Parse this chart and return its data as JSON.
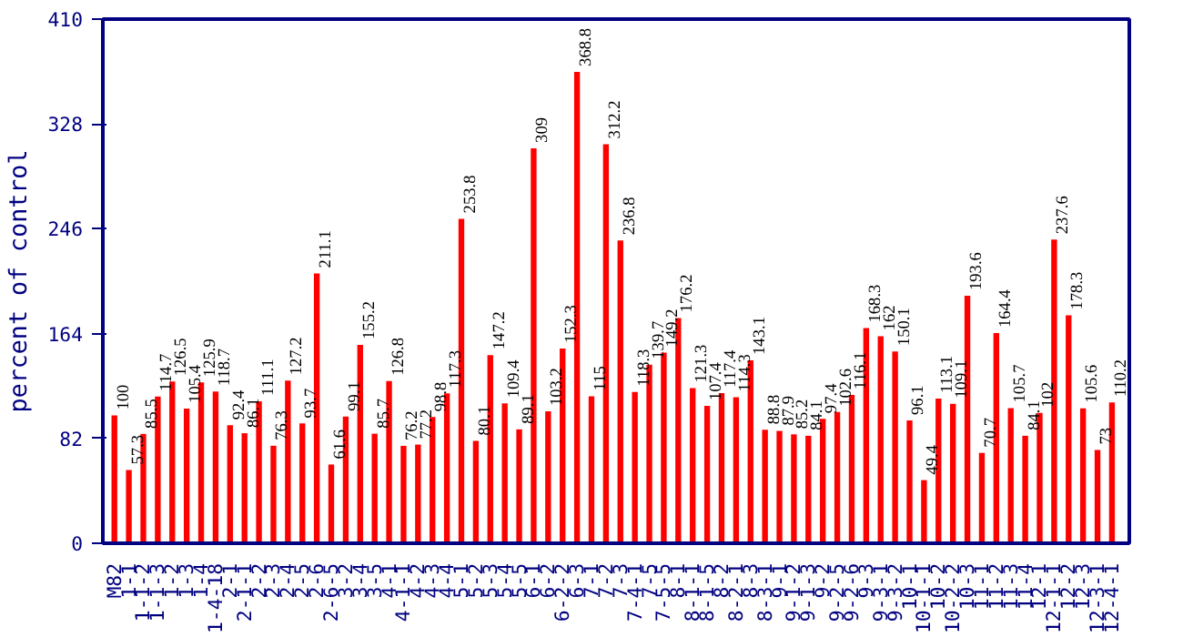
{
  "chart_data": {
    "type": "bar",
    "ylabel": "percent of control",
    "categories": [
      "M82",
      "1-1",
      "1-1-2",
      "1-1-3",
      "1-2",
      "1-3",
      "1-4",
      "1-4-18",
      "2-1",
      "2-1-1",
      "2-2",
      "2-3",
      "2-4",
      "2-5",
      "2-6",
      "2-6-5",
      "3-2",
      "3-4",
      "3-5",
      "4-1",
      "4-1-1",
      "4-2",
      "4-3",
      "4-4",
      "5-1",
      "5-2",
      "5-3",
      "5-4",
      "5-5",
      "6-1",
      "6-2",
      "6-2-2",
      "6-3",
      "7-1",
      "7-2",
      "7-3",
      "7-4-1",
      "7-5",
      "7-5-5",
      "8-1",
      "8-1-1",
      "8-1-5",
      "8-2",
      "8-2-1",
      "8-3",
      "8-3-1",
      "9-1",
      "9-1-2",
      "9-1-3",
      "9-2",
      "9-2-5",
      "9-2-6",
      "9-3",
      "9-3-1",
      "9-3-2",
      "10-1",
      "10-1-1",
      "10-2",
      "10-2-2",
      "10-3",
      "11-1",
      "11-2",
      "11-3",
      "11-4",
      "12-1",
      "12-1-1",
      "12-2",
      "12-3",
      "12-3-1",
      "12-4-1"
    ],
    "values": [
      100,
      57.3,
      85.5,
      114.7,
      126.5,
      105.4,
      125.9,
      118.7,
      92.4,
      86.1,
      111.1,
      76.3,
      127.2,
      93.7,
      211.1,
      61.6,
      99.1,
      155.2,
      85.7,
      126.8,
      76.2,
      77.2,
      98.8,
      117.3,
      253.8,
      80.1,
      147.2,
      109.4,
      89.1,
      309,
      103.2,
      152.3,
      368.8,
      115,
      312.2,
      236.8,
      118.3,
      139.7,
      149.2,
      176.2,
      121.3,
      107.4,
      117.4,
      114.3,
      143.1,
      88.8,
      87.9,
      85.2,
      84.1,
      97.4,
      102.6,
      116.1,
      168.3,
      162,
      150.1,
      96.1,
      49.4,
      113.1,
      109.1,
      193.6,
      70.7,
      164.4,
      105.7,
      84.1,
      102,
      237.6,
      178.3,
      105.6,
      73,
      110.2
    ],
    "color": "#ff0000",
    "ylim": [
      0,
      410
    ],
    "yticks": [
      0,
      82,
      164,
      246,
      328,
      410
    ],
    "data_labels": true,
    "grid": false
  }
}
